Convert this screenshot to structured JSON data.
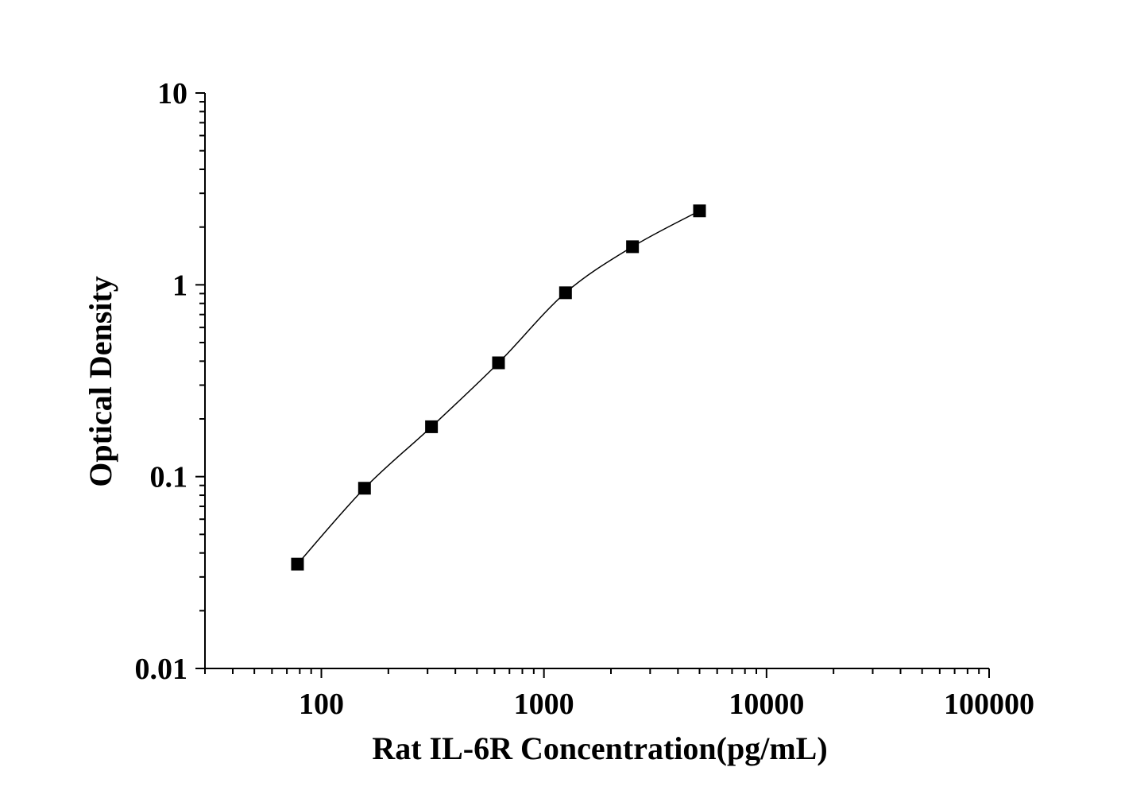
{
  "chart_data": {
    "type": "scatter",
    "title": "",
    "xlabel": "Rat IL-6R Concentration(pg/mL)",
    "ylabel": "Optical Density",
    "x_scale": "log",
    "y_scale": "log",
    "xlim": [
      30,
      100000
    ],
    "ylim": [
      0.01,
      10
    ],
    "x_ticks": [
      100,
      1000,
      10000,
      100000
    ],
    "x_tick_labels": [
      "100",
      "1000",
      "10000",
      "100000"
    ],
    "y_ticks": [
      0.01,
      0.1,
      1,
      10
    ],
    "y_tick_labels": [
      "0.01",
      "0.1",
      "1",
      "10"
    ],
    "grid": false,
    "marker": "square",
    "connected_with_smooth_line": true,
    "color": "#000000",
    "series": [
      {
        "x": [
          78.125,
          156.25,
          312.5,
          625,
          1250,
          2500,
          5000
        ],
        "y": [
          0.035,
          0.087,
          0.182,
          0.392,
          0.909,
          1.58,
          2.43
        ]
      }
    ]
  }
}
